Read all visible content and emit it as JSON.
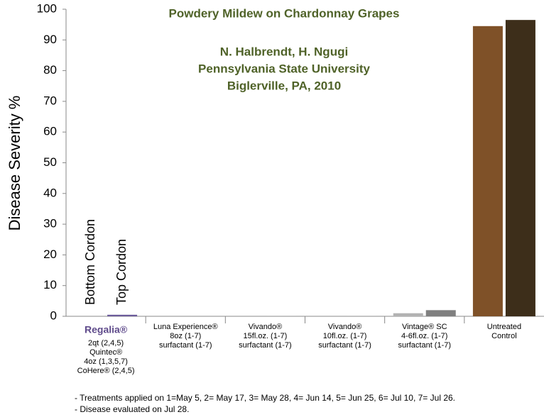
{
  "chart_data": {
    "type": "bar",
    "title": "Powdery Mildew on Chardonnay Grapes",
    "subtitle": [
      "N. Halbrendt, H. Ngugi",
      "Pennsylvania State University",
      "Biglerville, PA, 2010"
    ],
    "y_label": "Disease Severity %",
    "categories": [
      [
        "Regalia®",
        "2qt (2,4,5)",
        "Quintec®",
        "4oz (1,3,5,7)",
        "CoHere® (2,4,5)"
      ],
      [
        "Luna Experience®",
        "8oz (1-7)",
        "surfactant (1-7)"
      ],
      [
        "Vivando®",
        "15fl.oz. (1-7)",
        "surfactant (1-7)"
      ],
      [
        "Vivando®",
        "10fl.oz. (1-7)",
        "surfactant (1-7)"
      ],
      [
        "Vintage® SC",
        "4-6fl.oz. (1-7)",
        "surfactant (1-7)"
      ],
      [
        "Untreated",
        "Control"
      ]
    ],
    "series": [
      {
        "name": "Bottom Cordon",
        "colors": [
          "#6b5b9a",
          "#8c8c8c",
          "#8c8c8c",
          "#8c8c8c",
          "#b3b3b3",
          "#7f5128"
        ],
        "values": [
          0,
          0,
          0,
          0,
          1,
          94.5
        ]
      },
      {
        "name": "Top Cordon",
        "colors": [
          "#6b5b9a",
          "#8c8c8c",
          "#8c8c8c",
          "#8c8c8c",
          "#808080",
          "#3d2e1a"
        ],
        "values": [
          0.5,
          0,
          0.1,
          0.1,
          2,
          96.5
        ]
      }
    ],
    "ylim": [
      0,
      100
    ],
    "yticks": [
      0,
      10,
      20,
      30,
      40,
      50,
      60,
      70,
      80,
      90,
      100
    ],
    "notes": [
      "- Treatments applied on 1=May 5, 2= May 17, 3= May 28, 4= Jun 14, 5= Jun 25, 6= Jul 10, 7= Jul 26.",
      "- Disease evaluated on Jul 28."
    ]
  }
}
